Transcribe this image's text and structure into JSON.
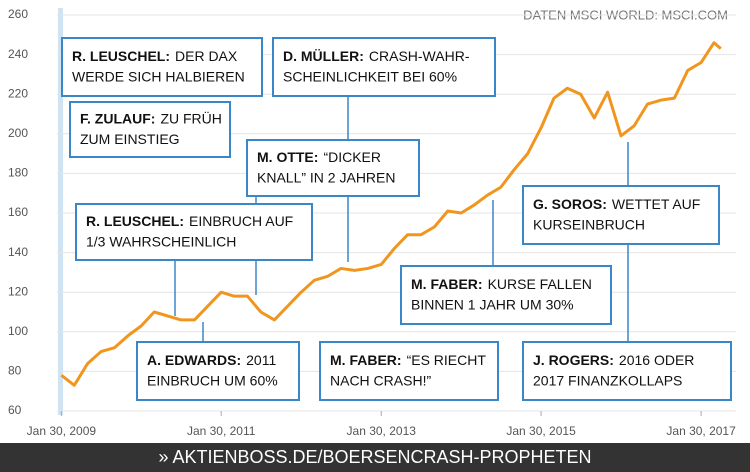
{
  "source": "DATEN MSCI WORLD: MSCI.COM",
  "footer": "» AKTIENBOSS.DE/BOERSENCRASH-PROPHETEN",
  "chart_data": {
    "type": "line",
    "x": [
      "2009-01-30",
      "2009-03-30",
      "2009-05-30",
      "2009-07-30",
      "2009-09-30",
      "2009-11-30",
      "2010-01-30",
      "2010-03-30",
      "2010-05-30",
      "2010-07-30",
      "2010-09-30",
      "2010-11-30",
      "2011-01-30",
      "2011-03-30",
      "2011-05-30",
      "2011-07-30",
      "2011-09-30",
      "2011-11-30",
      "2012-01-30",
      "2012-03-30",
      "2012-05-30",
      "2012-07-30",
      "2012-09-30",
      "2012-11-30",
      "2013-01-30",
      "2013-03-30",
      "2013-05-30",
      "2013-07-30",
      "2013-09-30",
      "2013-11-30",
      "2014-01-30",
      "2014-03-30",
      "2014-05-30",
      "2014-07-30",
      "2014-09-30",
      "2014-11-30",
      "2015-01-30",
      "2015-03-30",
      "2015-05-30",
      "2015-07-30",
      "2015-09-30",
      "2015-11-30",
      "2016-01-30",
      "2016-03-30",
      "2016-05-30",
      "2016-07-30",
      "2016-09-30",
      "2016-11-30",
      "2017-01-30",
      "2017-03-30",
      "2017-04-30"
    ],
    "values": [
      78,
      73,
      84,
      90,
      92,
      98,
      103,
      110,
      108,
      106,
      106,
      113,
      120,
      118,
      118,
      110,
      106,
      113,
      120,
      126,
      128,
      132,
      131,
      132,
      134,
      142,
      149,
      149,
      153,
      161,
      160,
      164,
      169,
      173,
      182,
      190,
      203,
      218,
      223,
      220,
      208,
      221,
      199,
      204,
      215,
      217,
      218,
      232,
      236,
      246,
      243
    ],
    "color": "#f0961e",
    "xlim": [
      "2009-01-10",
      "2017-05-10"
    ],
    "xticks": [
      {
        "value": "2009-01-30",
        "label": "Jan 30, 2009"
      },
      {
        "value": "2011-01-30",
        "label": "Jan 30, 2011"
      },
      {
        "value": "2013-01-30",
        "label": "Jan 30, 2013"
      },
      {
        "value": "2015-01-30",
        "label": "Jan 30, 2015"
      },
      {
        "value": "2017-01-30",
        "label": "Jan 30, 2017"
      }
    ],
    "ylim": [
      60,
      260
    ],
    "yticks": [
      60,
      80,
      100,
      120,
      140,
      160,
      180,
      200,
      220,
      240,
      260
    ],
    "grid": true,
    "annotations": [
      {
        "name": "R. LEUSCHEL:",
        "lines": [
          "DER DAX",
          "WERDE SICH HALBIEREN"
        ]
      },
      {
        "name": "F. ZULAUF:",
        "lines": [
          "ZU FRÜH",
          "ZUM EINSTIEG"
        ]
      },
      {
        "name": "D. MÜLLER:",
        "lines": [
          "CRASH-WAHR-",
          "SCHEINLICHKEIT BEI 60%"
        ]
      },
      {
        "name": "M. OTTE:",
        "lines": [
          "“DICKER",
          "KNALL” IN 2 JAHREN"
        ]
      },
      {
        "name": "R. LEUSCHEL:",
        "lines": [
          "EINBRUCH AUF",
          "1/3 WAHRSCHEINLICH"
        ]
      },
      {
        "name": "G. SOROS:",
        "lines": [
          "WETTET AUF",
          "KURSEINBRUCH"
        ]
      },
      {
        "name": "M. FABER:",
        "lines": [
          "KURSE FALLEN",
          "BINNEN 1 JAHR UM 30%"
        ]
      },
      {
        "name": "A. EDWARDS:",
        "lines": [
          "2011",
          "EINBRUCH UM 60%"
        ]
      },
      {
        "name": "M. FABER:",
        "lines": [
          "“ES RIECHT",
          "NACH CRASH!”"
        ]
      },
      {
        "name": "J. ROGERS:",
        "lines": [
          "2016 ODER",
          "2017 FINANZKOLLAPS"
        ]
      }
    ]
  }
}
